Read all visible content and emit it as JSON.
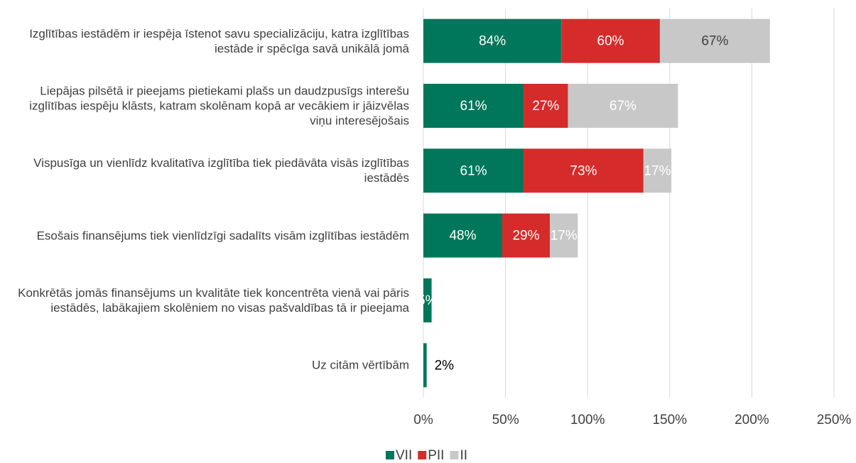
{
  "chart_data": {
    "type": "stacked_barh",
    "categories": [
      "Izglītības iestādēm ir iespēja īstenot savu specializāciju, katra izglītības iestāde ir spēcīga savā unikālā jomā",
      "Liepājas pilsētā ir pieejams pietiekami plašs un daudzpusīgs interešu izglītības iespēju klāsts, katram skolēnam kopā ar vecākiem ir jāizvēlas viņu interesējošais",
      "Vispusīga un vienlīdz kvalitatīva izglītība tiek piedāvāta visās izglītības iestādēs",
      "Esošais finansējums tiek vienlīdzīgi sadalīts visām izglītības iestādēm",
      "Konkrētās jomās finansējums un kvalitāte tiek koncentrēta vienā vai pāris iestādēs, labākajiem skolēniem no visas pašvaldības tā ir pieejama",
      "Uz citām vērtībām"
    ],
    "series": [
      {
        "name": "VII",
        "color": "#00775a",
        "values": [
          84,
          61,
          61,
          48,
          5,
          2
        ],
        "value_labels": [
          "84%",
          "61%",
          "61%",
          "48%",
          "5%",
          "2%"
        ],
        "value_label_colors": [
          "#ffffff",
          "#ffffff",
          "#ffffff",
          "#ffffff",
          "#ffffff",
          "#000000"
        ]
      },
      {
        "name": "PII",
        "color": "#d62b2b",
        "values": [
          60,
          27,
          73,
          29,
          null,
          null
        ],
        "value_labels": [
          "60%",
          "27%",
          "73%",
          "29%",
          null,
          null
        ],
        "value_label_colors": [
          "#ffffff",
          "#ffffff",
          "#ffffff",
          "#ffffff",
          null,
          null
        ]
      },
      {
        "name": "II",
        "color": "#c8c8c8",
        "values": [
          67,
          67,
          17,
          17,
          null,
          null
        ],
        "value_labels": [
          "67%",
          "67%",
          "17%",
          "17%",
          null,
          null
        ],
        "value_label_colors": [
          "#404040",
          "#ffffff",
          "#ffffff",
          "#ffffff",
          null,
          null
        ]
      }
    ],
    "xlim": [
      0,
      250
    ],
    "xticks": [
      {
        "value": 0,
        "label": "0%"
      },
      {
        "value": 50,
        "label": "50%"
      },
      {
        "value": 100,
        "label": "100%"
      },
      {
        "value": 150,
        "label": "150%"
      },
      {
        "value": 200,
        "label": "200%"
      },
      {
        "value": 250,
        "label": "250%"
      }
    ],
    "grid": true,
    "legend": "bottom"
  }
}
